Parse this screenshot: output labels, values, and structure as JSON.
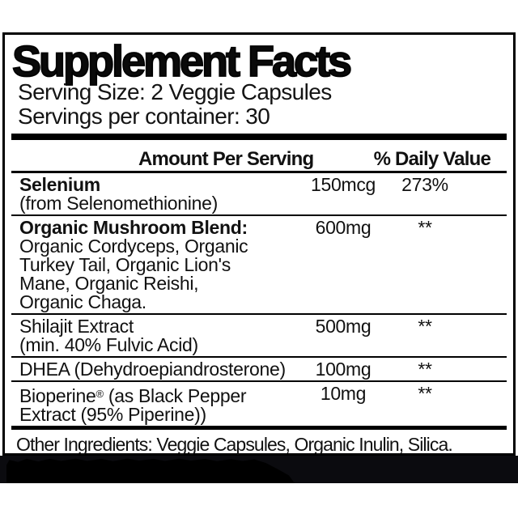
{
  "panel": {
    "title": "Supplement Facts",
    "serving_size": "Serving Size: 2 Veggie Capsules",
    "servings_per_container": "Servings per container: 30",
    "columns": {
      "amount": "Amount Per Serving",
      "daily_value": "% Daily Value"
    },
    "rows": [
      {
        "name": "Selenium",
        "desc": "(from Selenomethionine)",
        "amount": "150mcg",
        "dv": "273%"
      },
      {
        "name": "Organic Mushroom Blend:",
        "desc": "Organic Cordyceps, Organic\nTurkey Tail, Organic Lion's\nMane, Organic Reishi,\nOrganic Chaga.",
        "amount": "600mg",
        "dv": "**"
      },
      {
        "name": "Shilajit Extract",
        "desc": "(min. 40% Fulvic Acid)",
        "amount": "500mg",
        "dv": "**"
      },
      {
        "name": "DHEA (Dehydroepiandrosterone)",
        "amount": "100mg",
        "dv": "**"
      },
      {
        "name_prefix": "Bioperine",
        "name_reg_mark": "®",
        "name_suffix": " (as Black Pepper\nExtract (95% Piperine))",
        "amount": "10mg",
        "dv": "**"
      }
    ],
    "other_ingredients": "Other Ingredients: Veggie Capsules, Organic Inulin, Silica."
  }
}
